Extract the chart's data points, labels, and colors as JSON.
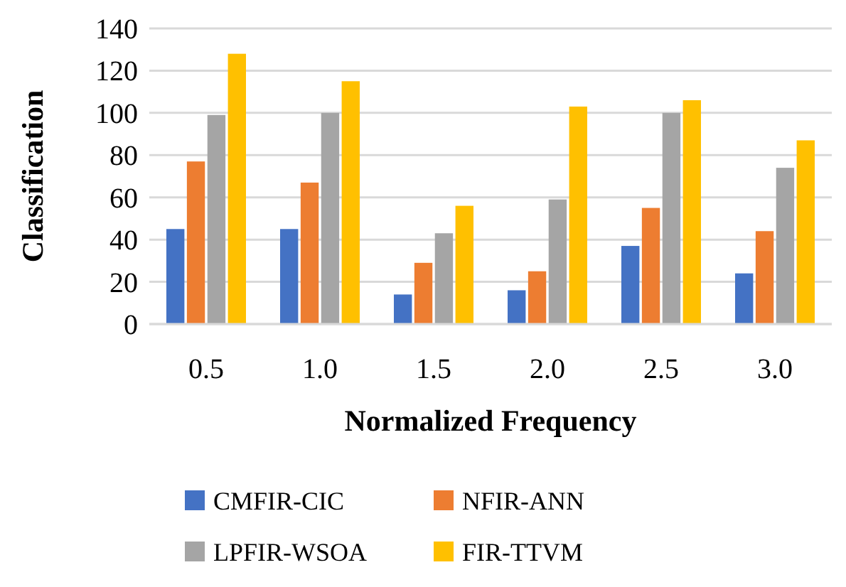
{
  "chart_data": {
    "type": "bar",
    "xlabel": "Normalized Frequency",
    "ylabel": "Classification",
    "categories": [
      "0.5",
      "1.0",
      "1.5",
      "2.0",
      "2.5",
      "3.0"
    ],
    "series": [
      {
        "name": "CMFIR-CIC",
        "color": "#4472c4",
        "values": [
          45,
          45,
          14,
          16,
          37,
          24
        ]
      },
      {
        "name": "NFIR-ANN",
        "color": "#ed7d31",
        "values": [
          77,
          67,
          29,
          25,
          55,
          44
        ]
      },
      {
        "name": "LPFIR-WSOA",
        "color": "#a5a5a5",
        "values": [
          99,
          100,
          43,
          59,
          100,
          74
        ]
      },
      {
        "name": "FIR-TTVM",
        "color": "#ffc000",
        "values": [
          128,
          115,
          56,
          103,
          106,
          87
        ]
      }
    ],
    "ylim": [
      0,
      140
    ],
    "yticks": [
      0,
      20,
      40,
      60,
      80,
      100,
      120,
      140
    ],
    "grid": "y",
    "legend": "bottom"
  }
}
